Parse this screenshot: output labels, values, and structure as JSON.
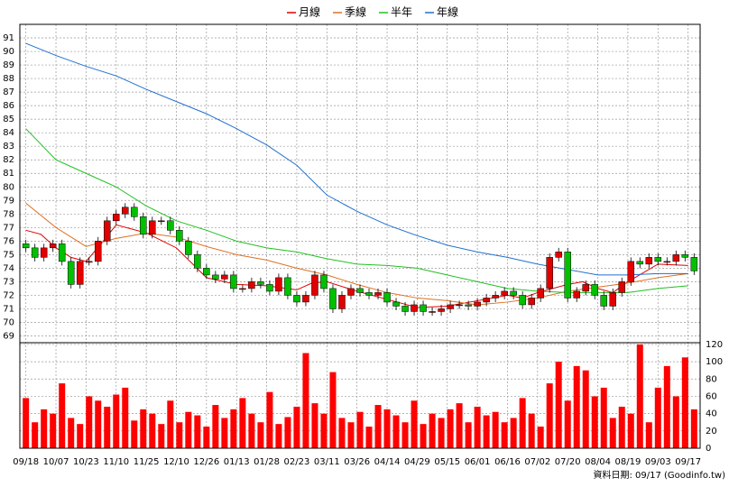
{
  "chart_data": {
    "type": "candlestick",
    "legend": "top",
    "grid": true,
    "xlim": [
      -2,
      224
    ],
    "xticks": [
      {
        "value": 0,
        "label": "09/18"
      },
      {
        "value": 10,
        "label": "10/07"
      },
      {
        "value": 20,
        "label": "10/23"
      },
      {
        "value": 30,
        "label": "11/10"
      },
      {
        "value": 40,
        "label": "11/25"
      },
      {
        "value": 50,
        "label": "12/10"
      },
      {
        "value": 60,
        "label": "12/26"
      },
      {
        "value": 70,
        "label": "01/13"
      },
      {
        "value": 80,
        "label": "01/28"
      },
      {
        "value": 90,
        "label": "02/23"
      },
      {
        "value": 100,
        "label": "03/11"
      },
      {
        "value": 110,
        "label": "03/26"
      },
      {
        "value": 120,
        "label": "04/14"
      },
      {
        "value": 130,
        "label": "04/29"
      },
      {
        "value": 140,
        "label": "05/15"
      },
      {
        "value": 150,
        "label": "06/01"
      },
      {
        "value": 160,
        "label": "06/16"
      },
      {
        "value": 170,
        "label": "07/02"
      },
      {
        "value": 180,
        "label": "07/20"
      },
      {
        "value": 190,
        "label": "08/04"
      },
      {
        "value": 200,
        "label": "08/19"
      },
      {
        "value": 210,
        "label": "09/03"
      },
      {
        "value": 220,
        "label": "09/17"
      }
    ],
    "ylim": [
      68.5,
      92
    ],
    "yticks": [
      69,
      70,
      71,
      72,
      73,
      74,
      75,
      76,
      77,
      78,
      79,
      80,
      81,
      82,
      83,
      84,
      85,
      86,
      87,
      88,
      89,
      90,
      91
    ],
    "series": [
      {
        "name": "月線",
        "color": "#e00000",
        "x": [
          0,
          5,
          10,
          15,
          20,
          25,
          30,
          40,
          50,
          60,
          70,
          80,
          90,
          95,
          100,
          110,
          120,
          130,
          140,
          150,
          160,
          165,
          170,
          180,
          185,
          190,
          195,
          200,
          210,
          220
        ],
        "values": [
          76.8,
          76.5,
          75.5,
          74.8,
          74.5,
          75.8,
          77.2,
          76.6,
          75.5,
          73.3,
          72.8,
          72.7,
          72.4,
          72.9,
          73,
          72.3,
          71.7,
          71.1,
          71.2,
          71.6,
          72,
          71.8,
          72.2,
          72.8,
          73,
          72.5,
          72.2,
          73,
          74.3,
          74.2
        ]
      },
      {
        "name": "季線",
        "color": "#e07020",
        "x": [
          0,
          10,
          20,
          30,
          40,
          50,
          60,
          70,
          80,
          90,
          100,
          110,
          120,
          130,
          140,
          150,
          160,
          170,
          180,
          190,
          200,
          210,
          220
        ],
        "values": [
          78.8,
          77,
          75.6,
          76.2,
          76.6,
          76.3,
          75.6,
          75,
          74.6,
          74,
          73.5,
          72.8,
          72.2,
          71.8,
          71.6,
          71.3,
          71.5,
          71.8,
          72.3,
          72.6,
          72.9,
          73.3,
          73.6
        ]
      },
      {
        "name": "半年",
        "color": "#20c020",
        "x": [
          0,
          10,
          20,
          30,
          40,
          50,
          60,
          70,
          80,
          90,
          100,
          110,
          120,
          130,
          140,
          150,
          160,
          170,
          180,
          190,
          200,
          210,
          220
        ],
        "values": [
          84.3,
          82,
          81,
          80,
          78.6,
          77.5,
          76.8,
          76,
          75.5,
          75.2,
          74.7,
          74.3,
          74.2,
          74,
          73.5,
          73,
          72.5,
          72.3,
          72.2,
          72.2,
          72.2,
          72.5,
          72.7
        ]
      },
      {
        "name": "年線",
        "color": "#2070d0",
        "x": [
          0,
          10,
          20,
          30,
          40,
          50,
          60,
          70,
          80,
          90,
          100,
          110,
          120,
          130,
          140,
          150,
          160,
          170,
          180,
          190,
          200,
          210,
          220
        ],
        "values": [
          90.6,
          89.7,
          88.9,
          88.2,
          87.2,
          86.3,
          85.4,
          84.3,
          83.1,
          81.6,
          79.4,
          78.2,
          77.2,
          76.4,
          75.7,
          75.2,
          74.8,
          74.3,
          73.9,
          73.5,
          73.5,
          73.6,
          73.6
        ]
      }
    ],
    "candles": {
      "up_color": "#e00000",
      "down_color": "#00c000",
      "x": [
        0,
        3,
        6,
        9,
        12,
        15,
        18,
        21,
        24,
        27,
        30,
        33,
        36,
        39,
        42,
        45,
        48,
        51,
        54,
        57,
        60,
        63,
        66,
        69,
        72,
        75,
        78,
        81,
        84,
        87,
        90,
        93,
        96,
        99,
        102,
        105,
        108,
        111,
        114,
        117,
        120,
        123,
        126,
        129,
        132,
        135,
        138,
        141,
        144,
        147,
        150,
        153,
        156,
        159,
        162,
        165,
        168,
        171,
        174,
        177,
        180,
        183,
        186,
        189,
        192,
        195,
        198,
        201,
        204,
        207,
        210,
        213,
        216,
        219,
        222
      ],
      "open": [
        75.8,
        75.5,
        74.8,
        75.5,
        75.8,
        74.5,
        72.8,
        74.5,
        74.5,
        76,
        77.5,
        78,
        78.5,
        77.8,
        76.5,
        77.5,
        77.5,
        76.8,
        76,
        75,
        74,
        73.5,
        73.2,
        73.5,
        72.5,
        72.5,
        73,
        72.8,
        72.3,
        73.3,
        72,
        71.5,
        72,
        73.5,
        72.5,
        71,
        72,
        72.5,
        72.2,
        72,
        72.2,
        71.5,
        71.2,
        70.8,
        71.3,
        70.8,
        70.8,
        71,
        71.3,
        71.3,
        71.2,
        71.5,
        71.8,
        72,
        72.3,
        72,
        71.3,
        71.8,
        72.5,
        74.8,
        75.2,
        71.8,
        72.3,
        72.8,
        72,
        71.2,
        72.2,
        73,
        74.5,
        74.3,
        74.8,
        74.5,
        74.5,
        75,
        74.8
      ],
      "high": [
        76.1,
        75.8,
        75.8,
        76.1,
        76.1,
        74.8,
        74.8,
        74.8,
        76.3,
        77.8,
        78.3,
        78.8,
        78.8,
        78.1,
        77.8,
        77.8,
        77.8,
        77.1,
        76.3,
        75.3,
        74.3,
        73.8,
        73.8,
        73.8,
        72.8,
        73.3,
        73.3,
        73.1,
        73.6,
        73.6,
        72.3,
        72.3,
        73.8,
        73.8,
        72.8,
        72.3,
        72.8,
        72.8,
        72.5,
        72.5,
        72.5,
        71.8,
        71.5,
        71.6,
        71.6,
        71.1,
        71.3,
        71.6,
        71.6,
        71.6,
        71.8,
        72.1,
        72.3,
        72.6,
        72.6,
        72.3,
        72.1,
        72.8,
        75.1,
        75.5,
        75.5,
        72.6,
        73.1,
        73.1,
        72.3,
        72.5,
        73.3,
        74.8,
        74.8,
        75.1,
        75.1,
        74.8,
        75.3,
        75.3,
        75.1
      ],
      "low": [
        75.2,
        74.5,
        74.5,
        75.2,
        74.2,
        72.5,
        72.5,
        74.2,
        74.2,
        75.7,
        77.2,
        77.7,
        77.5,
        76.2,
        76.2,
        77.2,
        76.5,
        75.7,
        74.7,
        73.7,
        73.2,
        72.9,
        72.9,
        72.2,
        72.2,
        72.2,
        72.5,
        72,
        72,
        71.7,
        71.2,
        71.2,
        71.7,
        72.2,
        70.7,
        70.7,
        71.7,
        71.9,
        71.7,
        71.7,
        71.2,
        70.9,
        70.5,
        70.5,
        70.5,
        70.5,
        70.5,
        70.7,
        71,
        70.9,
        70.9,
        71.2,
        71.5,
        71.7,
        71.7,
        71,
        71,
        71.5,
        72.2,
        74.5,
        71.5,
        71.5,
        72,
        71.7,
        70.9,
        70.9,
        71.9,
        72.7,
        74,
        74,
        74.2,
        74.2,
        74.2,
        74.5,
        73.5
      ],
      "close": [
        75.5,
        74.8,
        75.5,
        75.8,
        74.5,
        72.8,
        74.5,
        74.5,
        76,
        77.5,
        78,
        78.5,
        77.8,
        76.5,
        77.5,
        77.5,
        76.8,
        76,
        75,
        74,
        73.5,
        73.2,
        73.5,
        72.5,
        72.5,
        73,
        72.8,
        72.3,
        73.3,
        72,
        71.5,
        72,
        73.5,
        72.5,
        71,
        72,
        72.5,
        72.2,
        72,
        72.2,
        71.5,
        71.2,
        70.8,
        71.3,
        70.8,
        70.8,
        71,
        71.3,
        71.3,
        71.2,
        71.5,
        71.8,
        72,
        72.3,
        72,
        71.3,
        71.8,
        72.5,
        74.8,
        75.2,
        71.8,
        72.3,
        72.8,
        72,
        71.2,
        72.2,
        73,
        74.5,
        74.3,
        74.8,
        74.5,
        74.5,
        75,
        74.8,
        73.8
      ]
    },
    "volume": {
      "color": "#ff0000",
      "ylim": [
        0,
        122
      ],
      "yticks": [
        0,
        20,
        40,
        60,
        80,
        100,
        120
      ],
      "values": [
        58,
        30,
        45,
        40,
        75,
        35,
        28,
        60,
        55,
        48,
        62,
        70,
        32,
        45,
        40,
        28,
        55,
        30,
        42,
        38,
        25,
        50,
        35,
        45,
        58,
        40,
        30,
        65,
        28,
        36,
        48,
        110,
        52,
        40,
        88,
        35,
        30,
        42,
        25,
        50,
        45,
        38,
        30,
        55,
        28,
        40,
        35,
        45,
        52,
        30,
        48,
        38,
        42,
        30,
        35,
        58,
        40,
        25,
        75,
        100,
        55,
        95,
        90,
        60,
        70,
        35,
        48,
        40,
        120,
        30,
        70,
        95,
        60,
        105,
        45
      ]
    },
    "footer": "資料日期: 09/17 (Goodinfo.tw)"
  }
}
